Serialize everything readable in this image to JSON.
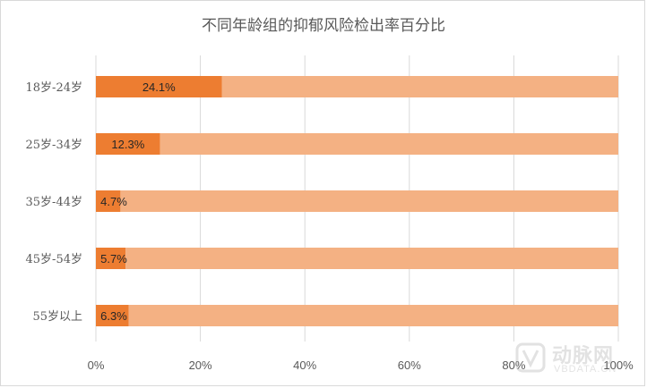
{
  "chart_data": {
    "type": "bar",
    "orientation": "horizontal",
    "stacked_percent": true,
    "title": "不同年龄组的抑郁风险检出率百分比",
    "categories": [
      "18岁-24岁",
      "25岁-34岁",
      "35岁-44岁",
      "45岁-54岁",
      "55岁以上"
    ],
    "series": [
      {
        "values": [
          24.1,
          12.3,
          4.7,
          5.7,
          6.3
        ],
        "color": "#ed7d31"
      },
      {
        "values": [
          75.9,
          87.7,
          95.3,
          94.3,
          93.7
        ],
        "color": "#f4b183"
      }
    ],
    "data_labels": [
      "24.1%",
      "12.3%",
      "4.7%",
      "5.7%",
      "6.3%"
    ],
    "x_ticks": [
      "0%",
      "20%",
      "40%",
      "60%",
      "80%",
      "100%"
    ],
    "xlim": [
      0,
      100
    ],
    "grid": true,
    "legend": "none"
  },
  "watermark": {
    "text": "动脉网",
    "sub": "VBDATA.CN"
  }
}
